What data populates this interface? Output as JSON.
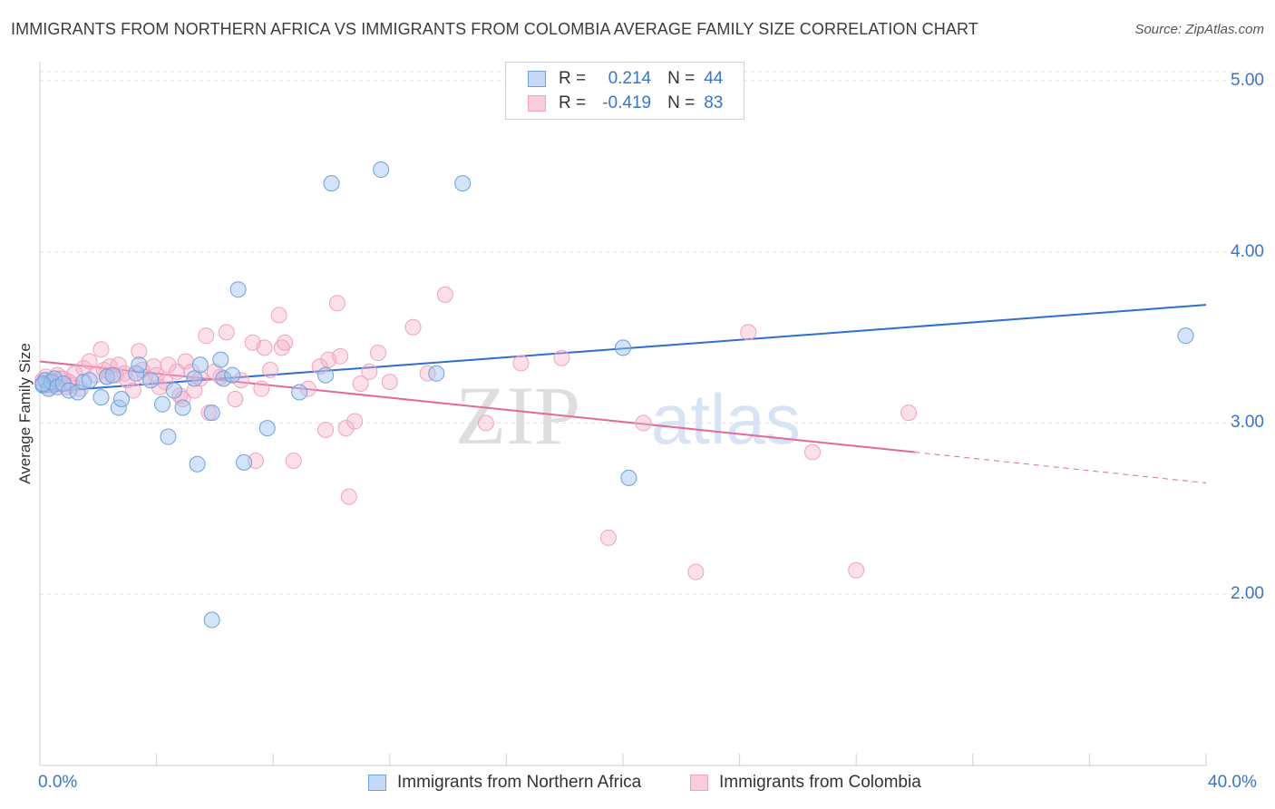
{
  "title": "IMMIGRANTS FROM NORTHERN AFRICA VS IMMIGRANTS FROM COLOMBIA AVERAGE FAMILY SIZE CORRELATION CHART",
  "source": "Source: ZipAtlas.com",
  "watermark": {
    "zip": "ZIP",
    "atlas": "atlas"
  },
  "legend": {
    "rows": [
      {
        "r_label": "R =",
        "r_value": "0.214",
        "n_label": "N =",
        "n_value": "44"
      },
      {
        "r_label": "R =",
        "r_value": "-0.419",
        "n_label": "N =",
        "n_value": "83"
      }
    ]
  },
  "chart_data": {
    "type": "scatter",
    "title": "IMMIGRANTS FROM NORTHERN AFRICA VS IMMIGRANTS FROM COLOMBIA AVERAGE FAMILY SIZE CORRELATION CHART",
    "xlabel": "",
    "ylabel": "Average Family Size",
    "xlim": [
      0,
      40
    ],
    "ylim": [
      1.0,
      5.1
    ],
    "x_tick_labels": [
      "0.0%",
      "40.0%"
    ],
    "y_ticks": [
      2.0,
      3.0,
      4.0,
      5.0
    ],
    "y_tick_labels": [
      "2.00",
      "3.00",
      "4.00",
      "5.00"
    ],
    "grid": true,
    "legend_position": "top-center",
    "series": [
      {
        "name": "Immigrants from Northern Africa",
        "color": "#6f9fe0",
        "line_color": "#2f6fd0",
        "R": 0.214,
        "N": 44,
        "trend": {
          "x": [
            0,
            40
          ],
          "y": [
            3.18,
            3.69
          ]
        },
        "points": [
          [
            0.1,
            3.22
          ],
          [
            0.2,
            3.25
          ],
          [
            0.3,
            3.2
          ],
          [
            0.4,
            3.24
          ],
          [
            0.5,
            3.26
          ],
          [
            0.6,
            3.21
          ],
          [
            0.8,
            3.23
          ],
          [
            1.0,
            3.19
          ],
          [
            1.3,
            3.18
          ],
          [
            1.5,
            3.24
          ],
          [
            1.7,
            3.25
          ],
          [
            2.1,
            3.15
          ],
          [
            2.3,
            3.27
          ],
          [
            2.5,
            3.28
          ],
          [
            2.7,
            3.09
          ],
          [
            2.8,
            3.14
          ],
          [
            3.3,
            3.29
          ],
          [
            3.4,
            3.34
          ],
          [
            3.8,
            3.25
          ],
          [
            4.2,
            3.11
          ],
          [
            4.4,
            2.92
          ],
          [
            4.6,
            3.19
          ],
          [
            4.9,
            3.09
          ],
          [
            5.3,
            3.26
          ],
          [
            5.4,
            2.76
          ],
          [
            5.5,
            3.34
          ],
          [
            5.9,
            3.06
          ],
          [
            5.9,
            1.85
          ],
          [
            6.2,
            3.37
          ],
          [
            6.3,
            3.26
          ],
          [
            6.6,
            3.28
          ],
          [
            6.8,
            3.78
          ],
          [
            7.0,
            2.77
          ],
          [
            7.8,
            2.97
          ],
          [
            8.9,
            3.18
          ],
          [
            9.8,
            3.28
          ],
          [
            10.0,
            4.4
          ],
          [
            11.7,
            4.48
          ],
          [
            13.6,
            3.29
          ],
          [
            14.5,
            4.4
          ],
          [
            20.0,
            3.44
          ],
          [
            20.2,
            2.68
          ],
          [
            39.3,
            3.51
          ],
          [
            0.1,
            3.23
          ]
        ]
      },
      {
        "name": "Immigrants from Colombia",
        "color": "#f2a2be",
        "line_color": "#e26a97",
        "R": -0.419,
        "N": 83,
        "trend": {
          "x": [
            0,
            30
          ],
          "y": [
            3.36,
            2.83
          ]
        },
        "trend_extension": {
          "x": [
            30,
            40
          ],
          "y": [
            2.83,
            2.65
          ]
        },
        "points": [
          [
            0.2,
            3.27
          ],
          [
            0.3,
            3.2
          ],
          [
            0.4,
            3.25
          ],
          [
            0.5,
            3.22
          ],
          [
            0.6,
            3.28
          ],
          [
            0.7,
            3.26
          ],
          [
            0.9,
            3.21
          ],
          [
            1.0,
            3.24
          ],
          [
            1.1,
            3.22
          ],
          [
            1.2,
            3.29
          ],
          [
            1.5,
            3.32
          ],
          [
            1.7,
            3.36
          ],
          [
            1.9,
            3.28
          ],
          [
            2.1,
            3.43
          ],
          [
            2.2,
            3.31
          ],
          [
            2.3,
            3.27
          ],
          [
            2.4,
            3.33
          ],
          [
            2.6,
            3.28
          ],
          [
            2.7,
            3.34
          ],
          [
            2.9,
            3.29
          ],
          [
            3.0,
            3.25
          ],
          [
            3.2,
            3.19
          ],
          [
            3.4,
            3.42
          ],
          [
            3.5,
            3.31
          ],
          [
            3.6,
            3.27
          ],
          [
            3.9,
            3.33
          ],
          [
            4.0,
            3.28
          ],
          [
            4.1,
            3.21
          ],
          [
            4.3,
            3.24
          ],
          [
            4.4,
            3.34
          ],
          [
            4.7,
            3.3
          ],
          [
            4.8,
            3.16
          ],
          [
            4.9,
            3.14
          ],
          [
            5.0,
            3.36
          ],
          [
            5.2,
            3.3
          ],
          [
            5.3,
            3.19
          ],
          [
            5.5,
            3.26
          ],
          [
            5.7,
            3.51
          ],
          [
            5.8,
            3.06
          ],
          [
            6.0,
            3.3
          ],
          [
            6.2,
            3.27
          ],
          [
            6.4,
            3.53
          ],
          [
            6.7,
            3.14
          ],
          [
            6.9,
            3.25
          ],
          [
            7.3,
            3.47
          ],
          [
            7.4,
            2.78
          ],
          [
            7.6,
            3.2
          ],
          [
            7.7,
            3.44
          ],
          [
            7.9,
            3.31
          ],
          [
            8.2,
            3.63
          ],
          [
            8.3,
            3.44
          ],
          [
            8.4,
            3.47
          ],
          [
            8.7,
            2.78
          ],
          [
            9.2,
            3.2
          ],
          [
            9.6,
            3.33
          ],
          [
            9.8,
            2.96
          ],
          [
            9.9,
            3.37
          ],
          [
            10.2,
            3.7
          ],
          [
            10.3,
            3.39
          ],
          [
            10.5,
            2.97
          ],
          [
            10.6,
            2.57
          ],
          [
            10.8,
            3.01
          ],
          [
            11.0,
            3.23
          ],
          [
            11.3,
            3.3
          ],
          [
            11.6,
            3.41
          ],
          [
            12.0,
            3.24
          ],
          [
            12.8,
            3.56
          ],
          [
            13.3,
            3.29
          ],
          [
            13.9,
            3.75
          ],
          [
            15.3,
            3.0
          ],
          [
            16.5,
            3.35
          ],
          [
            17.9,
            3.38
          ],
          [
            19.5,
            2.33
          ],
          [
            20.7,
            3.0
          ],
          [
            22.5,
            2.13
          ],
          [
            24.3,
            3.53
          ],
          [
            26.5,
            2.83
          ],
          [
            28.0,
            2.14
          ],
          [
            29.8,
            3.06
          ],
          [
            0.1,
            3.25
          ],
          [
            0.3,
            3.23
          ],
          [
            0.8,
            3.26
          ],
          [
            1.4,
            3.2
          ]
        ]
      }
    ]
  }
}
